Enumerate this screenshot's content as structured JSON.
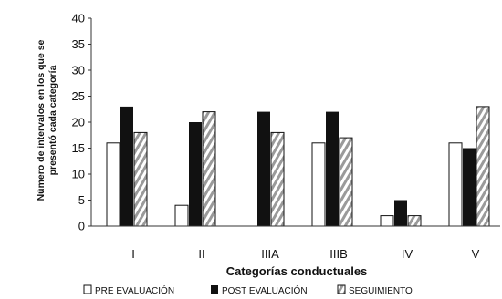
{
  "chart_data": {
    "type": "bar",
    "title": "",
    "xlabel": "Categorías conductuales",
    "ylabel_lines": [
      "Número de intervalos en los que se",
      "presentó cada categoría"
    ],
    "ylim": [
      0,
      40
    ],
    "yticks": [
      0,
      5,
      10,
      15,
      20,
      25,
      30,
      35,
      40
    ],
    "grid": false,
    "legend_position": "bottom",
    "categories": [
      "I",
      "II",
      "IIIA",
      "IIIB",
      "IV",
      "V"
    ],
    "series": [
      {
        "name": "PRE EVALUACIÓN",
        "style": "white",
        "values": [
          16,
          4,
          0,
          16,
          2,
          16
        ]
      },
      {
        "name": "POST EVALUACIÓN",
        "style": "black",
        "values": [
          23,
          20,
          22,
          22,
          5,
          15
        ]
      },
      {
        "name": "SEGUIMIENTO",
        "style": "striped",
        "values": [
          18,
          22,
          18,
          17,
          2,
          23
        ]
      }
    ],
    "colors": {
      "black": "#111111",
      "white": "#ffffff",
      "stripe": "#9a9a9a"
    }
  }
}
